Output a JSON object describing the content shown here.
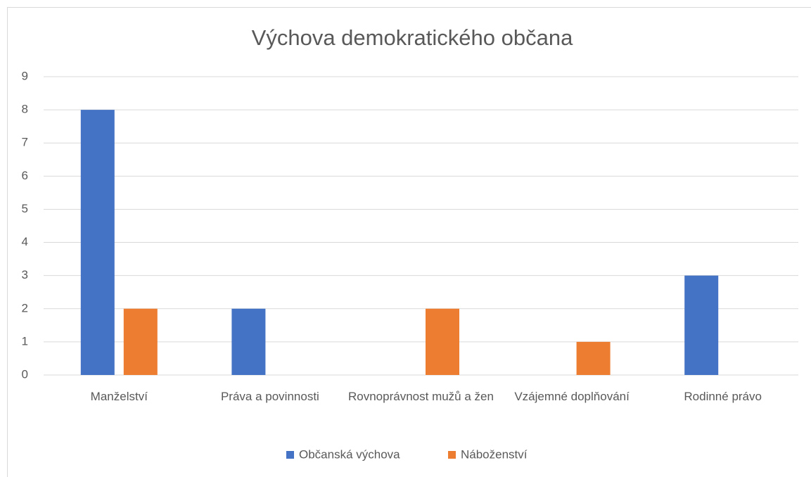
{
  "chart_data": {
    "type": "bar",
    "title": "Výchova demokratického občana",
    "categories": [
      "Manželství",
      "Práva a povinnosti",
      "Rovnoprávnost mužů a žen",
      "Vzájemné doplňování",
      "Rodinné právo"
    ],
    "series": [
      {
        "name": "Občanská výchova",
        "color": "#4472c4",
        "values": [
          8,
          2,
          0,
          0,
          3
        ]
      },
      {
        "name": "Náboženství",
        "color": "#ed7d31",
        "values": [
          2,
          0,
          2,
          1,
          0
        ]
      }
    ],
    "ylim": [
      0,
      9
    ],
    "yticks": [
      0,
      1,
      2,
      3,
      4,
      5,
      6,
      7,
      8,
      9
    ],
    "grid": true,
    "legend": "bottom"
  }
}
